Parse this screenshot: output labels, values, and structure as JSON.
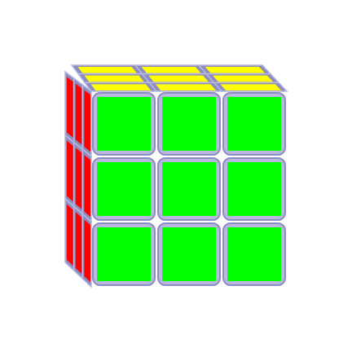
{
  "puzzle": {
    "type": "3x3 cube",
    "colors": {
      "front": "#00ff00",
      "left": "#ff0000",
      "top": "#ffff00",
      "body": "#b8b8e0",
      "body_dark": "#8c8cc0"
    },
    "faces": {
      "front": [
        "front",
        "front",
        "front",
        "front",
        "front",
        "front",
        "front",
        "front",
        "front"
      ],
      "left": [
        "left",
        "left",
        "left",
        "left",
        "left",
        "left",
        "left",
        "left",
        "left"
      ],
      "top": [
        "top",
        "top",
        "top",
        "top",
        "top",
        "top",
        "top",
        "top",
        "top"
      ]
    }
  }
}
